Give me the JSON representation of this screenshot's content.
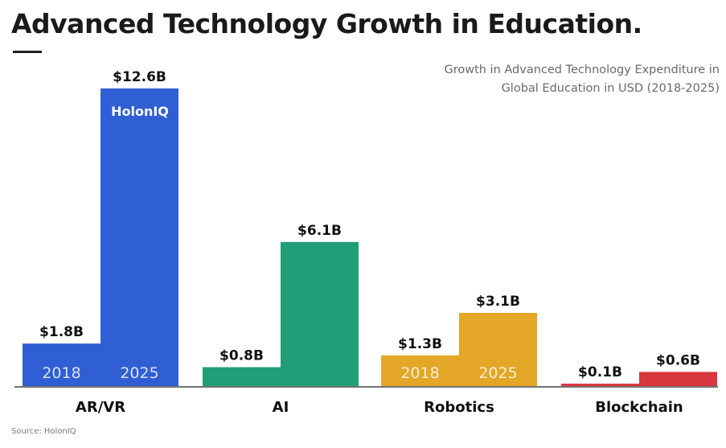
{
  "title": "Advanced Technology Growth in Education.",
  "subtitle_line1": "Growth in Advanced Technology Expenditure in",
  "subtitle_line2": "Global Education in USD (2018-2025)",
  "source": "Source: HolonIQ",
  "brand": "HolonIQ",
  "colors": {
    "AR/VR": "#2f5fd3",
    "AI": "#1f9e77",
    "Robotics": "#e3a626",
    "Blockchain": "#d9373f",
    "axis": "#444444"
  },
  "chart_data": {
    "type": "bar",
    "categories": [
      "AR/VR",
      "AI",
      "Robotics",
      "Blockchain"
    ],
    "x_groups": [
      "2018",
      "2025"
    ],
    "series": [
      {
        "name": "2018",
        "values": [
          1.8,
          0.8,
          1.3,
          0.1
        ],
        "labels": [
          "$1.8B",
          "$0.8B",
          "$1.3B",
          "$0.1B"
        ]
      },
      {
        "name": "2025",
        "values": [
          12.6,
          6.1,
          3.1,
          0.6
        ],
        "labels": [
          "$12.6B",
          "$6.1B",
          "$3.1B",
          "$0.6B"
        ]
      }
    ],
    "year_labels_on": [
      "AR/VR",
      "Robotics"
    ],
    "unit": "USD billions",
    "ylim": [
      0,
      12.6
    ],
    "grid": false,
    "legend": "none"
  }
}
